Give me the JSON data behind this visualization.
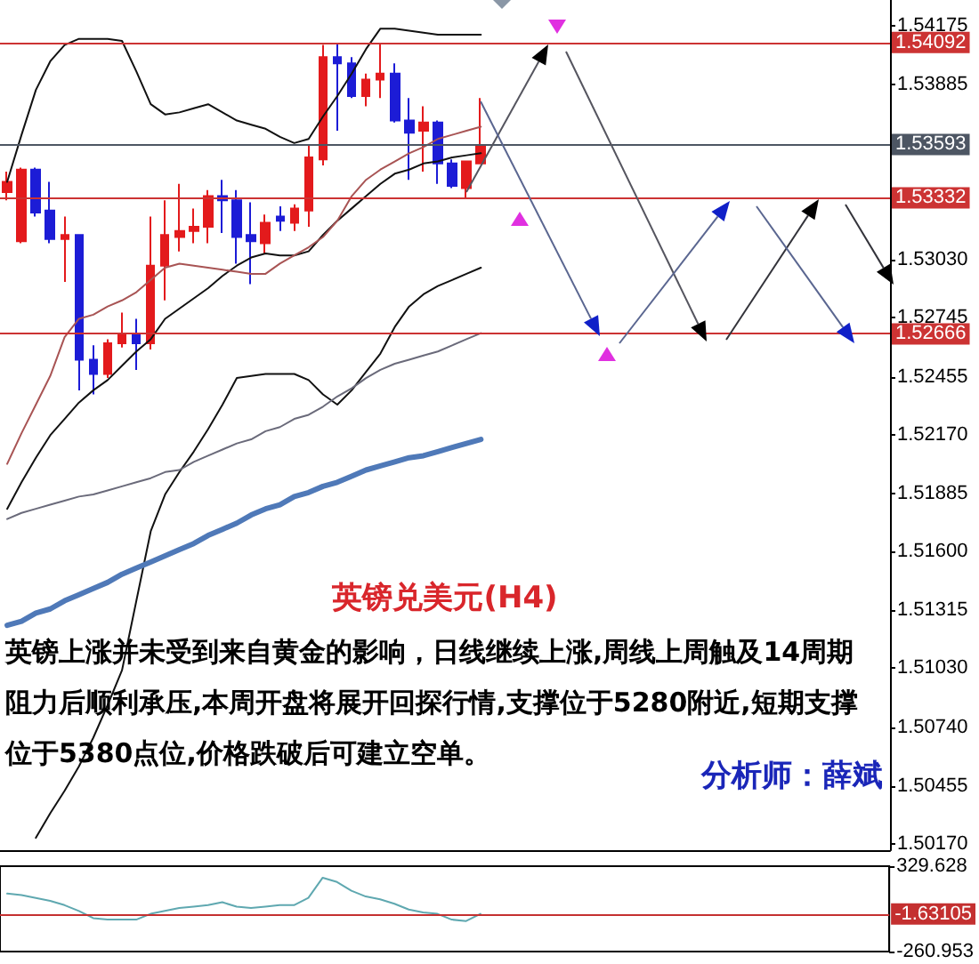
{
  "chart_data": [
    {
      "type": "candlestick",
      "title": "英镑兑美元(H4)",
      "annotations": [
        "英镑上涨并未受到来自黄金的影响，日线继续上涨,周线上周触及14周期阻力后顺利承压,本周开盘将展开回探行情,支撑位于5280附近,短期支撑位于5380点位,价格跌破后可建立空单。",
        "分析师：薛斌"
      ],
      "categories": [
        null,
        null,
        null,
        null,
        null,
        null,
        null,
        null,
        null,
        null,
        null,
        null,
        null,
        null,
        null,
        null,
        null,
        null,
        null,
        null,
        null,
        null,
        null,
        null,
        null,
        null,
        null,
        null,
        null,
        null,
        null,
        null,
        null,
        null,
        null,
        null,
        null,
        null,
        null,
        null,
        null,
        null,
        null,
        null,
        null,
        null,
        null,
        null,
        null,
        null,
        null,
        null,
        null,
        null,
        null,
        null,
        null,
        null,
        null,
        null,
        null,
        null
      ],
      "ohlc": [
        [
          1.5336,
          1.5346,
          1.5332,
          1.5341
        ],
        [
          1.5312,
          1.5348,
          1.5311,
          1.5347
        ],
        [
          1.5347,
          1.5348,
          1.5324,
          1.5326
        ],
        [
          1.5327,
          1.5341,
          1.5311,
          1.5313
        ],
        [
          1.5313,
          1.5324,
          1.5292,
          1.5315
        ],
        [
          1.5315,
          1.5315,
          1.5239,
          1.5254
        ],
        [
          1.5254,
          1.5261,
          1.5237,
          1.5247
        ],
        [
          1.5247,
          1.5264,
          1.5245,
          1.5262
        ],
        [
          1.5262,
          1.5277,
          1.526,
          1.5266
        ],
        [
          1.5266,
          1.5274,
          1.5249,
          1.5262
        ],
        [
          1.5262,
          1.5324,
          1.5259,
          1.53
        ],
        [
          1.53,
          1.5332,
          1.5283,
          1.5315
        ],
        [
          1.5314,
          1.534,
          1.5307,
          1.5317
        ],
        [
          1.5317,
          1.5328,
          1.5311,
          1.5319
        ],
        [
          1.5319,
          1.5337,
          1.5311,
          1.5334
        ],
        [
          1.5334,
          1.5342,
          1.5316,
          1.5332
        ],
        [
          1.5332,
          1.5337,
          1.5301,
          1.5314
        ],
        [
          1.5315,
          1.5331,
          1.5291,
          1.5312
        ],
        [
          1.5311,
          1.5325,
          1.5306,
          1.5321
        ],
        [
          1.5324,
          1.5329,
          1.5317,
          1.5322
        ],
        [
          1.5321,
          1.533,
          1.5317,
          1.5328
        ],
        [
          1.5327,
          1.5359,
          1.5319,
          1.5353
        ],
        [
          1.5352,
          1.5408,
          1.5349,
          1.5402
        ],
        [
          1.5402,
          1.5409,
          1.5366,
          1.5399
        ],
        [
          1.5399,
          1.5402,
          1.5382,
          1.5383
        ],
        [
          1.5383,
          1.5394,
          1.5378,
          1.5391
        ],
        [
          1.5391,
          1.5409,
          1.5382,
          1.5394
        ],
        [
          1.5394,
          1.5399,
          1.537,
          1.5371
        ],
        [
          1.5371,
          1.5382,
          1.5342,
          1.5365
        ],
        [
          1.5366,
          1.5378,
          1.5346,
          1.537
        ],
        [
          1.537,
          1.5371,
          1.534,
          1.535
        ],
        [
          1.535,
          1.5352,
          1.5338,
          1.5339
        ],
        [
          1.5338,
          1.5351,
          1.5333,
          1.5351
        ],
        [
          1.535,
          1.5382,
          1.535,
          1.5359
        ],
        null,
        null,
        null,
        null,
        null,
        null,
        null,
        null,
        null,
        null,
        null,
        null,
        null,
        null,
        null,
        null,
        null,
        null,
        null,
        null,
        null,
        null,
        null,
        null,
        null,
        null,
        null,
        null
      ],
      "colors": [
        "#e31a1c",
        "#e31a1c",
        "#1c1cd6",
        "#1c1cd6",
        "#e31a1c",
        "#1c1cd6",
        "#1c1cd6",
        "#e31a1c",
        "#e31a1c",
        "#1c1cd6",
        "#e31a1c",
        "#e31a1c",
        "#e31a1c",
        "#e31a1c",
        "#e31a1c",
        "#1c1cd6",
        "#1c1cd6",
        "#1c1cd6",
        "#e31a1c",
        "#1c1cd6",
        "#e31a1c",
        "#e31a1c",
        "#e31a1c",
        "#1c1cd6",
        "#1c1cd6",
        "#e31a1c",
        "#e31a1c",
        "#1c1cd6",
        "#1c1cd6",
        "#e31a1c",
        "#1c1cd6",
        "#1c1cd6",
        "#e31a1c",
        "#e31a1c",
        null,
        null,
        null,
        null,
        null,
        null,
        null,
        null,
        null,
        null,
        null,
        null,
        null,
        null,
        null,
        null,
        null,
        null,
        null,
        null,
        null,
        null,
        null,
        null,
        null,
        null,
        null,
        null
      ],
      "series": [
        {
          "type": "line",
          "color": "#111111",
          "values": [
            1.5341,
            1.5364,
            1.5386,
            1.54,
            1.5408,
            1.5411,
            1.5411,
            1.5411,
            1.541,
            1.5395,
            1.5379,
            1.5374,
            1.5375,
            1.5377,
            1.5379,
            1.5375,
            1.5371,
            1.5369,
            1.5367,
            1.5363,
            1.536,
            1.5362,
            1.5373,
            1.5383,
            1.5394,
            1.5406,
            1.5416,
            1.5416,
            1.5415,
            1.5414,
            1.5413,
            1.5413,
            1.5413,
            1.5413,
            null,
            null,
            null,
            null,
            null,
            null,
            null,
            null,
            null,
            null,
            null,
            null,
            null,
            null,
            null,
            null,
            null,
            null,
            null,
            null,
            null,
            null,
            null,
            null,
            null,
            null,
            null,
            null
          ]
        },
        {
          "type": "line",
          "color": "#111111",
          "values": [
            1.5181,
            1.5194,
            1.5206,
            1.5217,
            1.5225,
            1.5233,
            1.5239,
            1.5244,
            1.5251,
            1.5258,
            1.5264,
            1.5274,
            1.5279,
            1.5284,
            1.5289,
            1.5295,
            1.53,
            1.5304,
            1.5306,
            1.5305,
            1.5305,
            1.5307,
            1.5315,
            1.5322,
            1.5328,
            1.5334,
            1.534,
            1.5345,
            1.5347,
            1.535,
            1.5351,
            1.5353,
            1.5354,
            1.5355,
            null,
            null,
            null,
            null,
            null,
            null,
            null,
            null,
            null,
            null,
            null,
            null,
            null,
            null,
            null,
            null,
            null,
            null,
            null,
            null,
            null,
            null,
            null,
            null,
            null,
            null,
            null,
            null
          ]
        },
        {
          "type": "line",
          "color": "#111111",
          "values": [
            null,
            null,
            1.502,
            1.5032,
            1.5043,
            1.5055,
            1.5069,
            1.5085,
            1.5102,
            1.5136,
            1.517,
            1.5188,
            1.5199,
            1.5209,
            1.522,
            1.5232,
            1.5245,
            1.5246,
            1.5247,
            1.5247,
            1.5247,
            1.5244,
            1.5237,
            1.5232,
            1.5239,
            1.5248,
            1.5257,
            1.527,
            1.528,
            1.5286,
            1.529,
            1.5293,
            1.5296,
            1.5299,
            null,
            null,
            null,
            null,
            null,
            null,
            null,
            null,
            null,
            null,
            null,
            null,
            null,
            null,
            null,
            null,
            null,
            null,
            null,
            null,
            null,
            null,
            null,
            null,
            null,
            null,
            null,
            null
          ]
        },
        {
          "type": "line",
          "color": "#a85454",
          "values": [
            1.5203,
            1.5218,
            1.5232,
            1.5246,
            1.5265,
            1.5274,
            1.5276,
            1.528,
            1.5283,
            1.5287,
            1.5293,
            1.5299,
            1.5301,
            1.53,
            1.5299,
            1.5298,
            1.5297,
            1.5296,
            1.5296,
            1.5301,
            1.5305,
            1.5309,
            1.5314,
            1.5322,
            1.5334,
            1.5342,
            1.5347,
            1.5351,
            1.5355,
            1.5358,
            1.5362,
            1.5364,
            1.5366,
            1.5368,
            null,
            null,
            null,
            null,
            null,
            null,
            null,
            null,
            null,
            null,
            null,
            null,
            null,
            null,
            null,
            null,
            null,
            null,
            null,
            null,
            null,
            null,
            null,
            null,
            null,
            null,
            null,
            null
          ]
        },
        {
          "type": "line",
          "color": "#6a6a7a",
          "values": [
            1.5176,
            1.5179,
            1.5181,
            1.5183,
            1.5185,
            1.5187,
            1.5188,
            1.519,
            1.5192,
            1.5194,
            1.5196,
            1.5199,
            1.52,
            1.5204,
            1.5207,
            1.521,
            1.5213,
            1.5215,
            1.5219,
            1.5221,
            1.5225,
            1.5227,
            1.5231,
            1.5236,
            1.524,
            1.5245,
            1.5249,
            1.5252,
            1.5254,
            1.5256,
            1.5258,
            1.5261,
            1.5264,
            1.5267,
            null,
            null,
            null,
            null,
            null,
            null,
            null,
            null,
            null,
            null,
            null,
            null,
            null,
            null,
            null,
            null,
            null,
            null,
            null,
            null,
            null,
            null,
            null,
            null,
            null,
            null,
            null,
            null
          ]
        },
        {
          "type": "line",
          "color": "#4f79b8",
          "values": [
            1.5124,
            1.5126,
            1.513,
            1.5132,
            1.5136,
            1.5139,
            1.5142,
            1.5145,
            1.5149,
            1.5152,
            1.5155,
            1.5158,
            1.5161,
            1.5164,
            1.5168,
            1.5171,
            1.5174,
            1.5178,
            1.5181,
            1.5183,
            1.5187,
            1.5189,
            1.5192,
            1.5194,
            1.5197,
            1.52,
            1.5202,
            1.5204,
            1.5206,
            1.5207,
            1.5209,
            1.5211,
            1.5213,
            1.5215,
            null,
            null,
            null,
            null,
            null,
            null,
            null,
            null,
            null,
            null,
            null,
            null,
            null,
            null,
            null,
            null,
            null,
            null,
            null,
            null,
            null,
            null,
            null,
            null,
            null,
            null,
            null,
            null
          ]
        }
      ],
      "ylim": [
        1.5014,
        1.543
      ],
      "yticks": [
        1.54175,
        1.53885,
        {
          "value": 1.5303,
          "label": "1.53030"
        },
        1.52745,
        1.52455,
        {
          "value": 1.5217,
          "label": "1.52170"
        },
        1.51885,
        {
          "value": 1.516,
          "label": "1.51600"
        },
        1.51315,
        {
          "value": 1.5103,
          "label": "1.51030"
        },
        {
          "value": 1.5074,
          "label": "1.50740"
        },
        1.50455,
        {
          "value": 1.5017,
          "label": "1.50170"
        }
      ],
      "ref_lines": [
        {
          "axis": "y",
          "value": 1.54092,
          "label": "1.54092",
          "color": "#cc3333"
        },
        {
          "axis": "y",
          "value": 1.53593,
          "label": "1.53593",
          "color": "#4d5663"
        },
        {
          "axis": "y",
          "value": 1.53332,
          "label": "1.53332",
          "color": "#cc3333"
        },
        {
          "axis": "y",
          "value": 1.52666,
          "label": "1.52666",
          "color": "#cc3333"
        }
      ],
      "tick_labels": "y"
    },
    {
      "type": "line",
      "categories": [
        null,
        null,
        null,
        null,
        null,
        null,
        null,
        null,
        null,
        null,
        null,
        null,
        null,
        null,
        null,
        null,
        null,
        null,
        null,
        null,
        null,
        null,
        null,
        null,
        null,
        null,
        null,
        null,
        null,
        null,
        null,
        null,
        null,
        null,
        null,
        null,
        null,
        null,
        null,
        null,
        null,
        null,
        null,
        null,
        null,
        null,
        null,
        null,
        null,
        null,
        null,
        null,
        null,
        null,
        null,
        null,
        null,
        null,
        null,
        null,
        null,
        null
      ],
      "values": [
        140,
        130,
        110,
        90,
        60,
        20,
        -30,
        -40,
        -40,
        -40,
        0,
        20,
        40,
        50,
        60,
        80,
        50,
        40,
        50,
        60,
        60,
        110,
        250,
        220,
        160,
        120,
        100,
        70,
        30,
        10,
        0,
        -40,
        -50,
        0,
        null,
        null,
        null,
        null,
        null,
        null,
        null,
        null,
        null,
        null,
        null,
        null,
        null,
        null,
        null,
        null,
        null,
        null,
        null,
        null,
        null,
        null,
        null,
        null,
        null,
        null,
        null,
        null
      ],
      "color": "#5fa8b0",
      "ylim": [
        -260.953,
        329.628
      ],
      "yticks": [
        -260.953,
        329.628
      ],
      "ref_lines": [
        {
          "axis": "y",
          "value": -1.63105,
          "label": "-1.63105",
          "color": "#c43030"
        }
      ],
      "tick_labels": "y"
    }
  ]
}
